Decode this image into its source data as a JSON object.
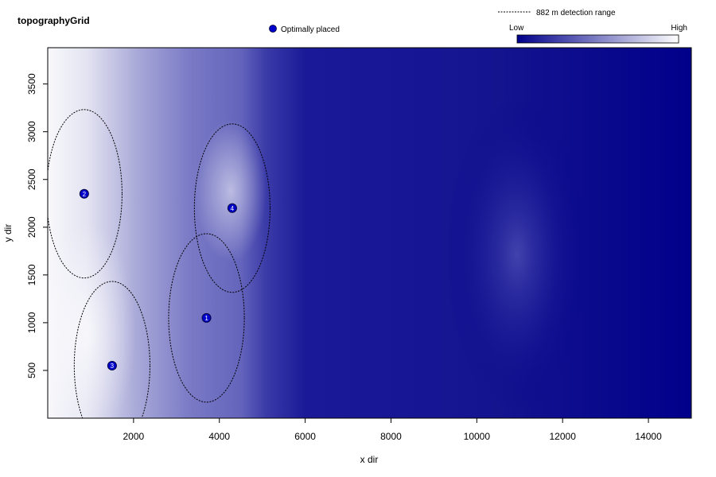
{
  "chart_data": {
    "type": "heatmap",
    "title": "topographyGrid",
    "xlabel": "x dir",
    "ylabel": "y dir",
    "xlim": [
      0,
      15000
    ],
    "ylim": [
      0,
      3880
    ],
    "x_ticks": [
      2000,
      4000,
      6000,
      8000,
      10000,
      12000,
      14000
    ],
    "y_ticks": [
      500,
      1000,
      1500,
      2000,
      2500,
      3000,
      3500
    ],
    "color_scale": {
      "low_label": "Low",
      "high_label": "High",
      "low_color": "#00008b",
      "high_color": "#ffffff"
    },
    "legend": {
      "range_label": "882 m detection range",
      "point_label": "Optimally placed",
      "placement": "top"
    },
    "detection_range_m": 882,
    "receivers": [
      {
        "id": "1",
        "x": 3700,
        "y": 1050
      },
      {
        "id": "2",
        "x": 850,
        "y": 2350
      },
      {
        "id": "3",
        "x": 1500,
        "y": 550
      },
      {
        "id": "4",
        "x": 4300,
        "y": 2200
      }
    ],
    "point_color": "#0000cc",
    "grid": false
  }
}
